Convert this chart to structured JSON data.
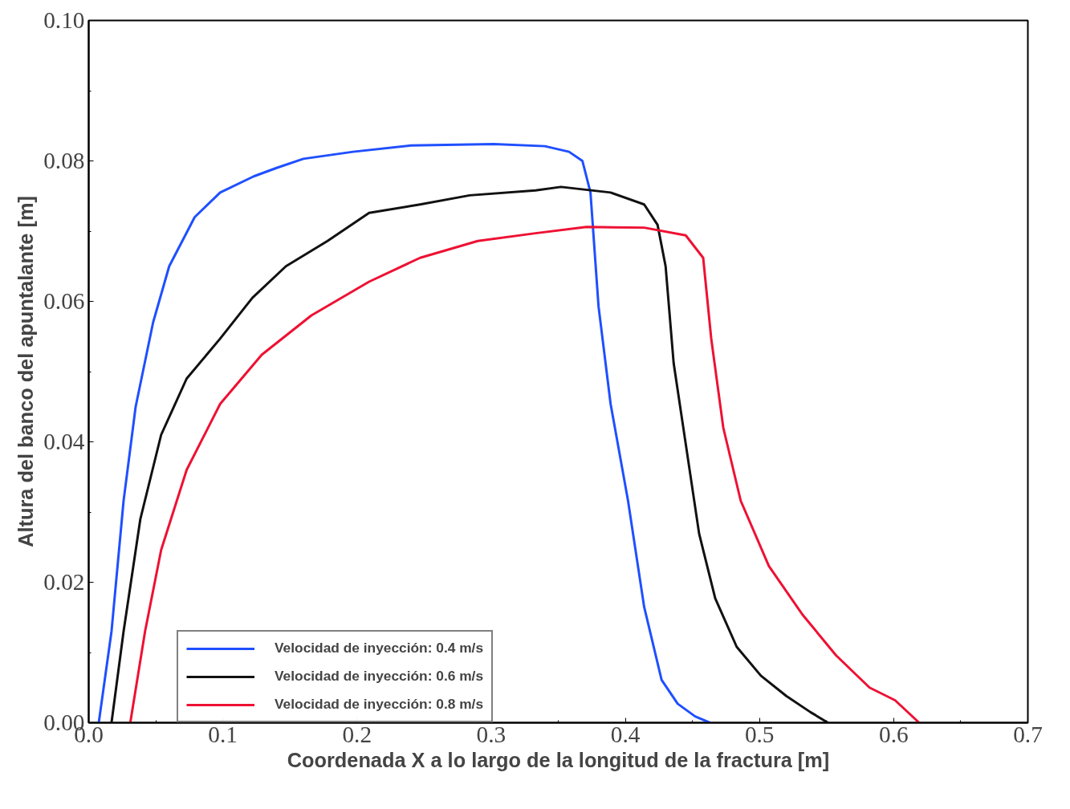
{
  "chart_data": {
    "type": "line",
    "xlabel": "Coordenada X a lo largo de la longitud de la fractura [m]",
    "ylabel": "Altura del banco del apuntalante [m]",
    "xlim": [
      0.0,
      0.7
    ],
    "ylim": [
      0.0,
      0.1
    ],
    "xticks": [
      {
        "value": 0.0,
        "label": "0.0"
      },
      0.1,
      0.2,
      0.3,
      0.4,
      0.5,
      0.6,
      0.7
    ],
    "yticks": [
      {
        "value": 0.0,
        "label": "0.00"
      },
      {
        "value": 0.02,
        "label": "0.02"
      },
      {
        "value": 0.04,
        "label": "0.04"
      },
      {
        "value": 0.06,
        "label": "0.06"
      },
      {
        "value": 0.08,
        "label": "0.08"
      },
      {
        "value": 0.1,
        "label": "0.10"
      }
    ],
    "grid": false,
    "legend": "bottom left",
    "marker": "none",
    "line_style": "solid",
    "series": [
      {
        "name": "Velocidad de inyección: 0.4 m/s",
        "color": "#1f4fff",
        "x": [
          0.0075,
          0.017,
          0.026,
          0.035,
          0.048,
          0.06,
          0.079,
          0.098,
          0.123,
          0.14,
          0.16,
          0.197,
          0.24,
          0.302,
          0.34,
          0.358,
          0.368,
          0.374,
          0.38,
          0.389,
          0.402,
          0.414,
          0.427,
          0.439,
          0.452,
          0.463
        ],
        "values": [
          0.0,
          0.013,
          0.0316,
          0.045,
          0.057,
          0.065,
          0.072,
          0.0755,
          0.0778,
          0.079,
          0.0803,
          0.0813,
          0.0822,
          0.0824,
          0.0821,
          0.0813,
          0.08,
          0.0755,
          0.0593,
          0.0454,
          0.0316,
          0.0165,
          0.0061,
          0.0027,
          0.0009,
          0.0
        ]
      },
      {
        "name": "Velocidad de inyección: 0.6 m/s",
        "color": "#111111",
        "x": [
          0.017,
          0.026,
          0.0385,
          0.054,
          0.073,
          0.098,
          0.122,
          0.147,
          0.178,
          0.209,
          0.247,
          0.284,
          0.333,
          0.352,
          0.389,
          0.414,
          0.424,
          0.43,
          0.436,
          0.445,
          0.455,
          0.467,
          0.483,
          0.501,
          0.52,
          0.538,
          0.551
        ],
        "values": [
          0.0,
          0.013,
          0.029,
          0.041,
          0.049,
          0.0547,
          0.0605,
          0.065,
          0.0686,
          0.0726,
          0.0738,
          0.0751,
          0.0758,
          0.0763,
          0.0755,
          0.0738,
          0.0709,
          0.065,
          0.0512,
          0.0397,
          0.0269,
          0.0177,
          0.0108,
          0.0067,
          0.0038,
          0.0015,
          0.0
        ]
      },
      {
        "name": "Velocidad de inyección: 0.8 m/s",
        "color": "#ee1133",
        "x": [
          0.031,
          0.042,
          0.054,
          0.073,
          0.098,
          0.129,
          0.166,
          0.209,
          0.247,
          0.29,
          0.333,
          0.371,
          0.414,
          0.445,
          0.458,
          0.464,
          0.473,
          0.486,
          0.507,
          0.532,
          0.557,
          0.582,
          0.601,
          0.619
        ],
        "values": [
          0.0,
          0.013,
          0.0246,
          0.036,
          0.0454,
          0.0524,
          0.058,
          0.0628,
          0.0662,
          0.0686,
          0.0697,
          0.0706,
          0.0705,
          0.0694,
          0.0662,
          0.0547,
          0.042,
          0.0316,
          0.0223,
          0.0154,
          0.0096,
          0.005,
          0.0032,
          0.0
        ]
      }
    ]
  }
}
